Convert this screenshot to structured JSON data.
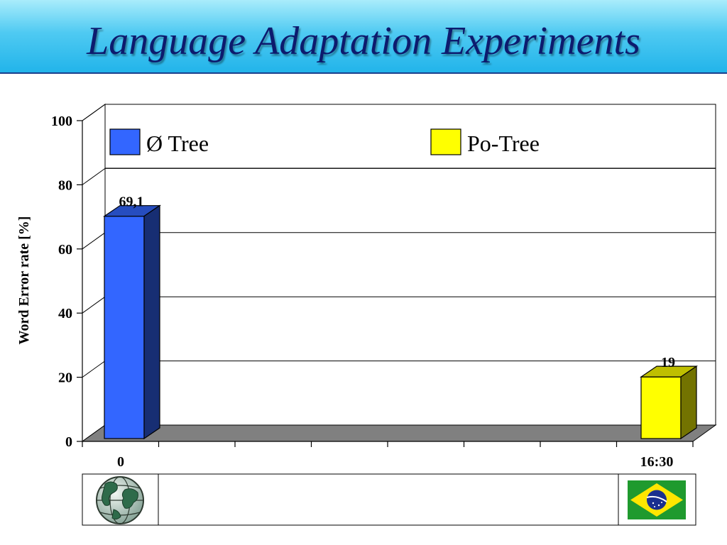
{
  "slide": {
    "title": "Language Adaptation Experiments"
  },
  "colors": {
    "series1": "#3366ff",
    "series2": "#ffff00",
    "floor": "#808080"
  },
  "chart_data": {
    "type": "bar",
    "categories": [
      "0",
      "16:30"
    ],
    "series": [
      {
        "name": "Ø Tree",
        "values": [
          69.1,
          null
        ],
        "labels": [
          "69,1",
          ""
        ]
      },
      {
        "name": "Po-Tree",
        "values": [
          null,
          19
        ],
        "labels": [
          "",
          "19"
        ]
      }
    ],
    "ylabel": "Word Error rate [%]",
    "ylim": [
      0,
      100
    ],
    "yticks": [
      "0",
      "20",
      "40",
      "60",
      "80",
      "100"
    ],
    "grid": true,
    "legend": "top",
    "table_row": [
      {
        "icon": "globe-icon"
      },
      {
        "icon": "brazil-flag-icon"
      }
    ]
  }
}
